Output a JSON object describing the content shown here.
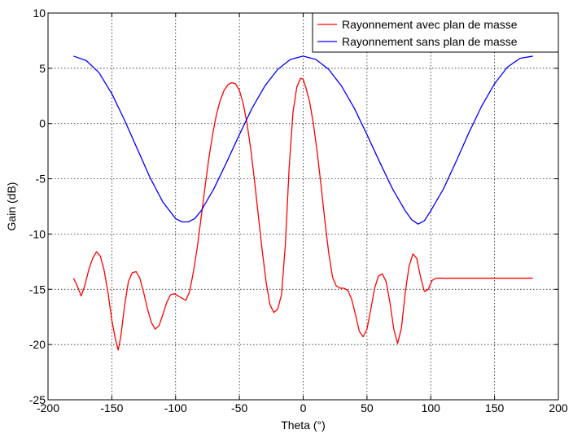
{
  "chart_data": {
    "type": "line",
    "title": "",
    "xlabel": "Theta (°)",
    "ylabel": "Gain (dB)",
    "xlim": [
      -200,
      200
    ],
    "ylim": [
      -25,
      10
    ],
    "xticks": [
      -200,
      -150,
      -100,
      -50,
      0,
      50,
      100,
      150,
      200
    ],
    "yticks": [
      -25,
      -20,
      -15,
      -10,
      -5,
      0,
      5,
      10
    ],
    "grid": true,
    "grid_style": "dotted",
    "legend_position": "top-right",
    "series": [
      {
        "name": "Rayonnement avec plan de masse",
        "color": "#ff0000",
        "x": [
          -180,
          -177,
          -174,
          -171,
          -168,
          -165,
          -162,
          -159,
          -156,
          -153,
          -150,
          -147,
          -145,
          -143,
          -140,
          -137,
          -134,
          -131,
          -128,
          -125,
          -122,
          -119,
          -116,
          -113,
          -110,
          -107,
          -104,
          -101,
          -98,
          -95,
          -92,
          -89,
          -86,
          -83,
          -80,
          -77,
          -74,
          -71,
          -68,
          -65,
          -62,
          -59,
          -56,
          -53,
          -50,
          -47,
          -44,
          -41,
          -38,
          -35,
          -32,
          -29,
          -26,
          -23,
          -20,
          -17,
          -14,
          -11,
          -8,
          -5,
          -2,
          0,
          2,
          5,
          8,
          11,
          14,
          17,
          20,
          23,
          26,
          29,
          32,
          35,
          38,
          41,
          44,
          47,
          50,
          53,
          56,
          59,
          62,
          65,
          68,
          71,
          74,
          77,
          80,
          83,
          86,
          89,
          92,
          95,
          98,
          101,
          104,
          107,
          110,
          113,
          116,
          119,
          122,
          125,
          128,
          131,
          134,
          137,
          140,
          143,
          145,
          147,
          150,
          153,
          156,
          159,
          162,
          165,
          168,
          171,
          174,
          177,
          180
        ],
        "y": [
          -14,
          -14.7,
          -15.6,
          -14.6,
          -13.2,
          -12.2,
          -11.6,
          -12.0,
          -13.3,
          -15.3,
          -17.8,
          -19.6,
          -20.5,
          -19.3,
          -16.5,
          -14.3,
          -13.5,
          -13.4,
          -14.0,
          -15.3,
          -16.8,
          -18.0,
          -18.6,
          -18.3,
          -17.3,
          -16.2,
          -15.5,
          -15.4,
          -15.6,
          -15.8,
          -16.0,
          -15.2,
          -13.4,
          -11.2,
          -8.5,
          -5.8,
          -3.2,
          -1.0,
          0.8,
          2.1,
          3.0,
          3.5,
          3.7,
          3.6,
          3.0,
          1.8,
          0.0,
          -2.4,
          -5.3,
          -8.5,
          -11.6,
          -14.4,
          -16.4,
          -17.1,
          -16.8,
          -15.5,
          -11.0,
          -4.0,
          1.0,
          3.3,
          4.1,
          4.0,
          3.3,
          2.0,
          0.0,
          -2.6,
          -5.6,
          -8.8,
          -11.7,
          -13.9,
          -14.7,
          -14.9,
          -14.9,
          -15.1,
          -15.9,
          -17.3,
          -18.8,
          -19.3,
          -18.6,
          -16.8,
          -14.9,
          -13.8,
          -13.6,
          -14.3,
          -16.2,
          -18.6,
          -19.9,
          -18.5,
          -15.3,
          -12.9,
          -11.8,
          -12.2,
          -13.9,
          -15.2,
          -15.0,
          -14.2,
          -14.0,
          -14.0,
          -14.0,
          -14.0,
          -14.0,
          -14.0,
          -14.0,
          -14.0,
          -14.0,
          -14.0,
          -14.0,
          -14.0,
          -14.0,
          -14.0,
          -14.0,
          -14.0,
          -14.0,
          -14.0,
          -14.0,
          -14.0,
          -14.0,
          -14.0,
          -14.0,
          -14.0,
          -14.0,
          -14.0,
          -14.0
        ]
      },
      {
        "name": "Rayonnement sans plan de masse",
        "color": "#0000ff",
        "x": [
          -180,
          -170,
          -160,
          -150,
          -140,
          -130,
          -120,
          -110,
          -100,
          -95,
          -90,
          -85,
          -80,
          -70,
          -60,
          -50,
          -40,
          -30,
          -20,
          -10,
          0,
          10,
          20,
          30,
          40,
          50,
          60,
          70,
          80,
          85,
          90,
          95,
          100,
          110,
          120,
          130,
          140,
          150,
          160,
          170,
          180
        ],
        "y": [
          6.1,
          5.7,
          4.6,
          2.7,
          0.3,
          -2.3,
          -4.9,
          -7.1,
          -8.6,
          -8.9,
          -8.9,
          -8.6,
          -7.9,
          -5.9,
          -3.5,
          -1.0,
          1.4,
          3.4,
          4.9,
          5.8,
          6.1,
          5.8,
          4.9,
          3.4,
          1.4,
          -1.0,
          -3.5,
          -5.9,
          -7.9,
          -8.7,
          -9.1,
          -8.8,
          -7.9,
          -5.9,
          -3.4,
          -0.8,
          1.6,
          3.6,
          5.1,
          5.9,
          6.1
        ]
      }
    ]
  }
}
